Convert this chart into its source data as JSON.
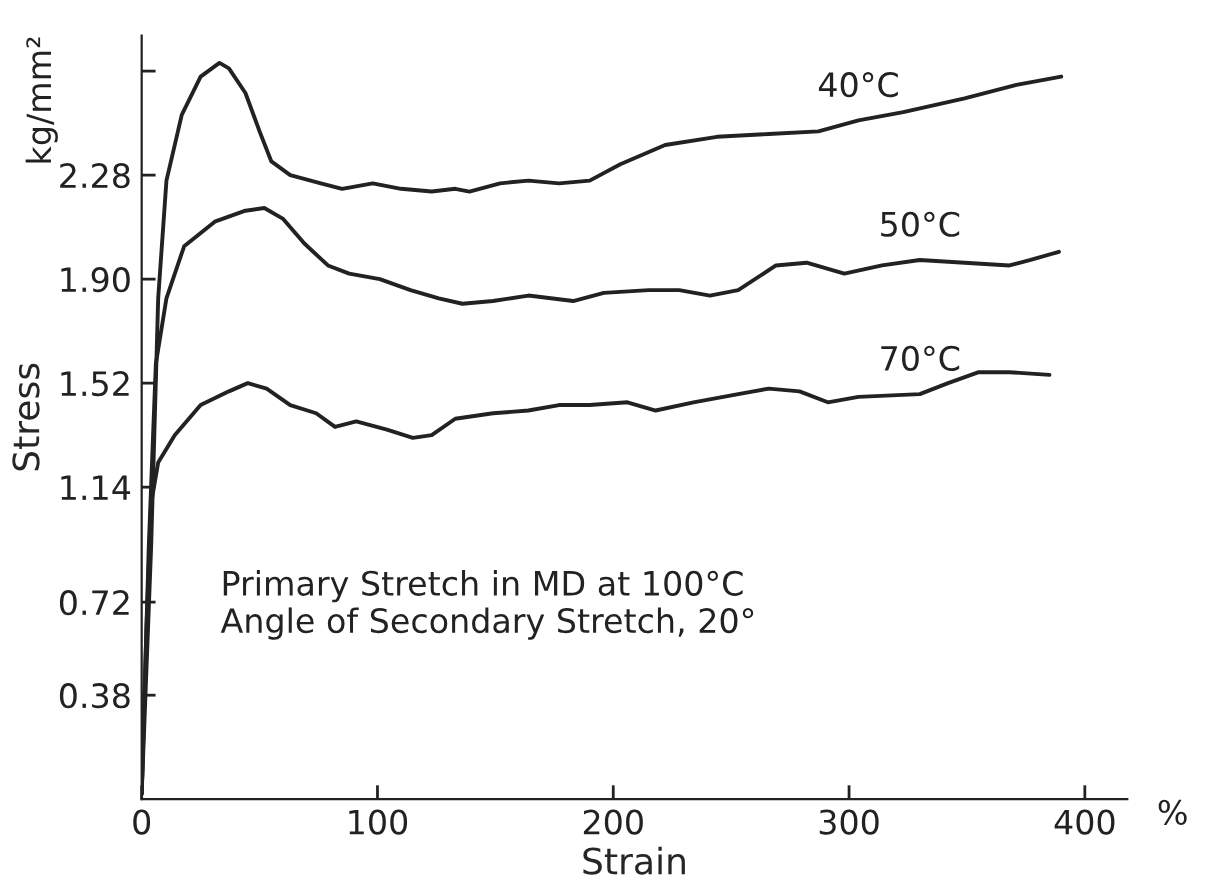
{
  "chart_data": {
    "type": "line",
    "xlabel": "Strain",
    "ylabel": "Stress",
    "annotations": [
      "kg/mm²",
      "%",
      "Primary Stretch in MD at 100°C\nAngle of Secondary Stretch, 20°"
    ],
    "xlim": [
      0,
      418
    ],
    "ylim": [
      0,
      2.79
    ],
    "xticks": [
      0,
      100,
      200,
      300,
      400
    ],
    "yticks": [
      0.38,
      0.72,
      1.14,
      1.52,
      {
        "value": 1.9,
        "label": "1.90"
      },
      2.28,
      {
        "value": 2.66,
        "label": null
      }
    ],
    "grid": false,
    "legend": false,
    "marker": "none",
    "line_style": "solid",
    "series": [
      {
        "name": "40°C",
        "color": "#222222",
        "x": [
          0,
          4,
          7,
          10.5,
          17,
          25,
          33,
          37,
          44,
          50,
          55,
          63,
          76,
          85,
          98,
          110,
          123,
          133,
          139,
          152,
          164,
          177,
          190,
          203,
          222,
          244,
          266,
          287,
          304,
          323,
          349,
          371,
          390
        ],
        "values": [
          0.02,
          0.92,
          1.83,
          2.26,
          2.5,
          2.64,
          2.69,
          2.67,
          2.58,
          2.44,
          2.33,
          2.28,
          2.25,
          2.23,
          2.25,
          2.23,
          2.22,
          2.23,
          2.22,
          2.25,
          2.26,
          2.25,
          2.26,
          2.32,
          2.39,
          2.42,
          2.43,
          2.44,
          2.48,
          2.51,
          2.56,
          2.61,
          2.64
        ]
      },
      {
        "name": "50°C",
        "color": "#222222",
        "x": [
          0,
          3,
          6,
          10.5,
          18,
          31,
          44,
          52,
          60,
          69,
          79,
          88,
          101,
          114,
          126,
          136,
          149,
          164,
          183,
          196,
          215,
          228,
          241,
          253,
          269,
          282,
          298,
          314,
          330,
          349,
          368,
          377,
          389
        ],
        "values": [
          0.02,
          0.92,
          1.59,
          1.83,
          2.02,
          2.11,
          2.15,
          2.16,
          2.12,
          2.03,
          1.95,
          1.92,
          1.9,
          1.86,
          1.83,
          1.81,
          1.82,
          1.84,
          1.82,
          1.85,
          1.86,
          1.86,
          1.84,
          1.86,
          1.95,
          1.96,
          1.92,
          1.95,
          1.97,
          1.96,
          1.95,
          1.97,
          2.0
        ]
      },
      {
        "name": "70°C",
        "color": "#222222",
        "x": [
          0,
          2,
          4,
          7,
          14,
          25,
          37,
          45,
          53,
          63,
          74,
          82,
          91,
          104,
          115,
          123,
          133,
          149,
          164,
          177,
          190,
          206,
          218,
          234,
          253,
          266,
          279,
          291,
          304,
          330,
          342,
          355,
          368,
          385
        ],
        "values": [
          0.02,
          0.62,
          1.08,
          1.23,
          1.33,
          1.44,
          1.49,
          1.52,
          1.5,
          1.44,
          1.41,
          1.36,
          1.38,
          1.35,
          1.32,
          1.33,
          1.39,
          1.41,
          1.42,
          1.44,
          1.44,
          1.45,
          1.42,
          1.45,
          1.48,
          1.5,
          1.49,
          1.45,
          1.47,
          1.48,
          1.52,
          1.56,
          1.56,
          1.55
        ]
      }
    ]
  }
}
